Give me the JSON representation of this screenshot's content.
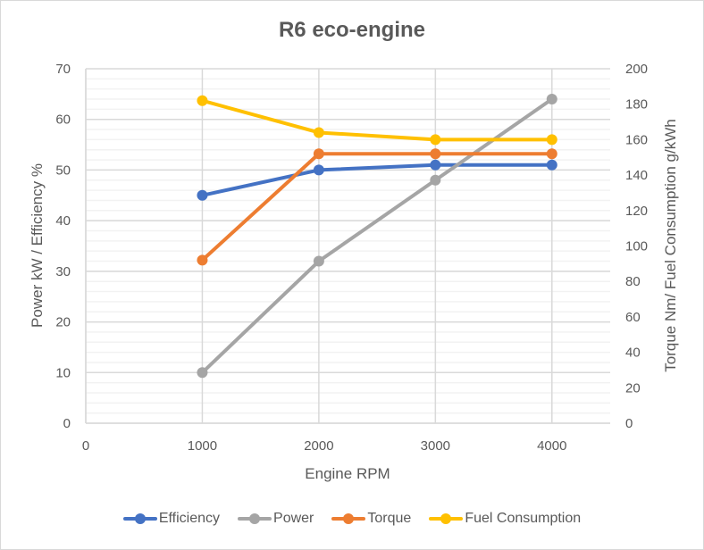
{
  "chart_data": {
    "type": "line",
    "title": "R6 eco-engine",
    "xlabel": "Engine RPM",
    "ylabel": "Power kW / Efficiency %",
    "y2label": "Torque Nm/ Fuel Consumption g/kWh",
    "x": [
      1000,
      2000,
      3000,
      4000
    ],
    "xlim": [
      0,
      4500
    ],
    "x_ticks": [
      "0",
      "1000",
      "2000",
      "3000",
      "4000"
    ],
    "ylim": [
      0,
      70
    ],
    "y_ticks": [
      "0",
      "10",
      "20",
      "30",
      "40",
      "50",
      "60",
      "70"
    ],
    "y2lim": [
      0,
      200
    ],
    "y2_ticks": [
      "0",
      "20",
      "40",
      "60",
      "80",
      "100",
      "120",
      "140",
      "160",
      "180",
      "200"
    ],
    "grid": true,
    "legend_position": "bottom",
    "series": [
      {
        "name": "Efficiency",
        "axis": "left",
        "color": "#4472c4",
        "values": [
          45,
          50,
          51,
          51
        ]
      },
      {
        "name": "Power",
        "axis": "left",
        "color": "#a5a5a5",
        "values": [
          10,
          32,
          48,
          64
        ]
      },
      {
        "name": "Torque",
        "axis": "right",
        "color": "#ed7d31",
        "values": [
          92,
          152,
          152,
          152
        ]
      },
      {
        "name": "Fuel Consumption",
        "axis": "right",
        "color": "#ffc000",
        "values": [
          182,
          164,
          160,
          160
        ]
      }
    ]
  }
}
